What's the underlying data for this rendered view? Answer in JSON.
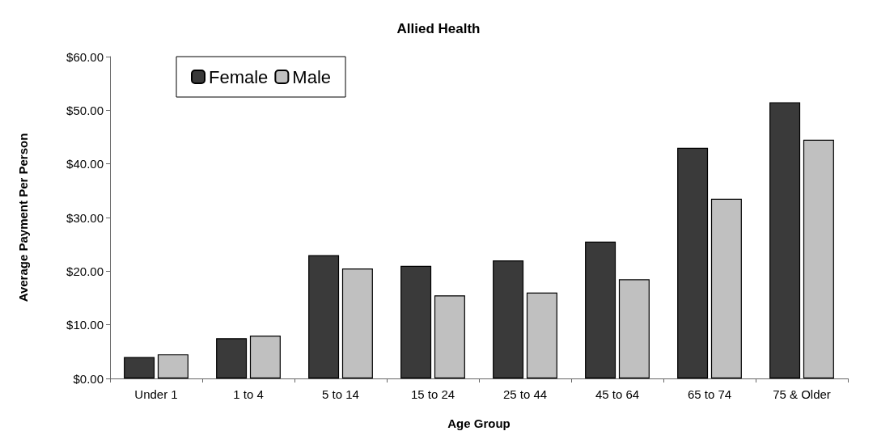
{
  "chart_data": {
    "type": "bar",
    "title": "Allied Health",
    "xlabel": "Age Group",
    "ylabel": "Average Payment Per Person",
    "categories": [
      "Under 1",
      "1 to 4",
      "5 to 14",
      "15 to 24",
      "25 to 44",
      "45 to 64",
      "65 to 74",
      "75 & Older"
    ],
    "series": [
      {
        "name": "Female",
        "color": "#3a3a3a",
        "values": [
          4,
          7.5,
          23,
          21,
          22,
          25.5,
          43,
          51.5
        ]
      },
      {
        "name": "Male",
        "color": "#c0c0c0",
        "values": [
          4.5,
          8,
          20.5,
          15.5,
          16,
          18.5,
          33.5,
          44.5
        ]
      }
    ],
    "ylim": [
      0,
      60
    ],
    "yticks": [
      {
        "value": 0,
        "label": "$0.00"
      },
      {
        "value": 10,
        "label": "$10.00"
      },
      {
        "value": 20,
        "label": "$20.00"
      },
      {
        "value": 30,
        "label": "$30.00"
      },
      {
        "value": 40,
        "label": "$40.00"
      },
      {
        "value": 50,
        "label": "$50.00"
      },
      {
        "value": 60,
        "label": "$60.00"
      }
    ],
    "grid": false,
    "legend": "top left"
  }
}
